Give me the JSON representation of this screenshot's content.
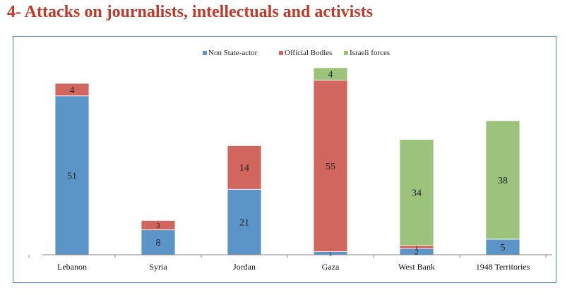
{
  "title": "4- Attacks on journalists, intellectuals and activists",
  "chart_data": {
    "type": "bar",
    "stacked": true,
    "title": "4- Attacks on journalists, intellectuals and activists",
    "xlabel": "",
    "ylabel": "",
    "ylim": [
      0,
      60
    ],
    "legend_position": "top-center",
    "categories": [
      "Lebanon",
      "Syria",
      "Jordan",
      "Gaza",
      "West Bank",
      "1948 Territories"
    ],
    "series": [
      {
        "name": "Non State-actor",
        "color": "#5b94c6",
        "values": [
          51,
          8,
          21,
          1,
          2,
          5
        ]
      },
      {
        "name": "Official Bodies",
        "color": "#d0665e",
        "values": [
          4,
          3,
          14,
          55,
          1,
          0
        ]
      },
      {
        "name": "Israeli forces",
        "color": "#9bc37b",
        "values": [
          0,
          0,
          0,
          4,
          34,
          38
        ]
      }
    ]
  }
}
